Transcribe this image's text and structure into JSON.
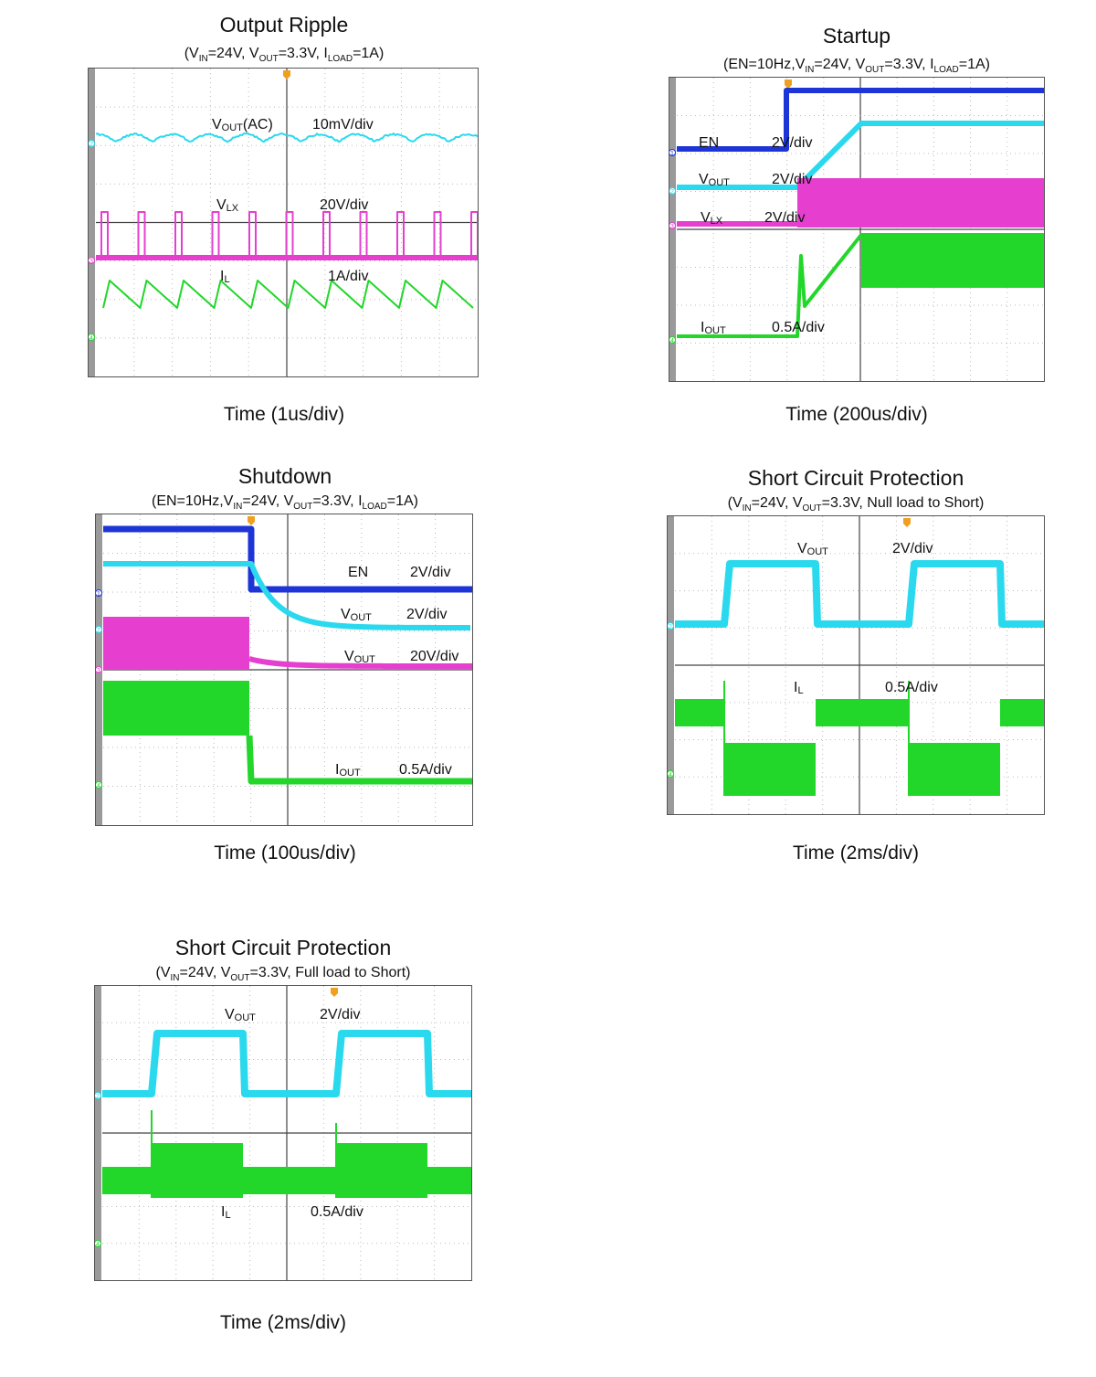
{
  "colors": {
    "cyan": "#2ad9ee",
    "magenta": "#e63fd0",
    "green": "#22d62a",
    "blue": "#1d35d6",
    "trigger": "#f0a020"
  },
  "panels": [
    {
      "title": "Output Ripple",
      "subtitle_parts": [
        "(V",
        "IN",
        "=24V, V",
        "OUT",
        "=3.3V, I",
        "LOAD",
        "=1A)"
      ],
      "xlabel": "Time (1us/div)"
    },
    {
      "title": "Startup",
      "subtitle_parts": [
        "(EN=10Hz,V",
        "IN",
        "=24V, V",
        "OUT",
        "=3.3V, I",
        "LOAD",
        "=1A)"
      ],
      "xlabel": "Time (200us/div)"
    },
    {
      "title": "Shutdown",
      "subtitle_parts": [
        "(EN=10Hz,V",
        "IN",
        "=24V, V",
        "OUT",
        "=3.3V, I",
        "LOAD",
        "=1A)"
      ],
      "xlabel": "Time (100us/div)"
    },
    {
      "title": "Short Circuit Protection",
      "subtitle_parts": [
        "(V",
        "IN",
        "=24V, V",
        "OUT",
        "=3.3V, Null load to Short)"
      ],
      "xlabel": "Time (2ms/div)"
    },
    {
      "title": "Short Circuit Protection",
      "subtitle_parts": [
        "(V",
        "IN",
        "=24V, V",
        "OUT",
        "=3.3V, Full load to Short)"
      ],
      "xlabel": "Time (2ms/div)"
    }
  ],
  "chart_data": [
    {
      "type": "line",
      "title": "Output Ripple",
      "xlabel": "Time (1us/div)",
      "series": [
        {
          "name": "VOUT(AC)",
          "label_main": "V",
          "label_sub": "OUT",
          "label_suffix": "(AC)",
          "scale": "10mV/div",
          "color": "cyan",
          "channel": "2"
        },
        {
          "name": "VLX",
          "label_main": "V",
          "label_sub": "LX",
          "label_suffix": "",
          "scale": "20V/div",
          "color": "magenta",
          "channel": "3"
        },
        {
          "name": "IL",
          "label_main": "I",
          "label_sub": "L",
          "label_suffix": "",
          "scale": "1A/div",
          "color": "green",
          "channel": "4"
        }
      ]
    },
    {
      "type": "line",
      "title": "Startup",
      "xlabel": "Time (200us/div)",
      "series": [
        {
          "name": "EN",
          "label_main": "EN",
          "label_sub": "",
          "label_suffix": "",
          "scale": "2V/div",
          "color": "blue",
          "channel": "1"
        },
        {
          "name": "VOUT",
          "label_main": "V",
          "label_sub": "OUT",
          "label_suffix": "",
          "scale": "2V/div",
          "color": "cyan",
          "channel": "2"
        },
        {
          "name": "VLX",
          "label_main": "V",
          "label_sub": "LX",
          "label_suffix": "",
          "scale": "2V/div",
          "color": "magenta",
          "channel": "3"
        },
        {
          "name": "IOUT",
          "label_main": "I",
          "label_sub": "OUT",
          "label_suffix": "",
          "scale": "0.5A/div",
          "color": "green",
          "channel": "4"
        }
      ]
    },
    {
      "type": "line",
      "title": "Shutdown",
      "xlabel": "Time (100us/div)",
      "series": [
        {
          "name": "EN",
          "label_main": "EN",
          "label_sub": "",
          "label_suffix": "",
          "scale": "2V/div",
          "color": "blue",
          "channel": "1"
        },
        {
          "name": "VOUT",
          "label_main": "V",
          "label_sub": "OUT",
          "label_suffix": "",
          "scale": "2V/div",
          "color": "cyan",
          "channel": "2"
        },
        {
          "name": "VOUT",
          "label_main": "V",
          "label_sub": "OUT",
          "label_suffix": "",
          "scale": "20V/div",
          "color": "magenta",
          "channel": "3"
        },
        {
          "name": "IOUT",
          "label_main": "I",
          "label_sub": "OUT",
          "label_suffix": "",
          "scale": "0.5A/div",
          "color": "green",
          "channel": "4"
        }
      ]
    },
    {
      "type": "line",
      "title": "Short Circuit Protection",
      "xlabel": "Time (2ms/div)",
      "series": [
        {
          "name": "VOUT",
          "label_main": "V",
          "label_sub": "OUT",
          "label_suffix": "",
          "scale": "2V/div",
          "color": "cyan",
          "channel": "2"
        },
        {
          "name": "IL",
          "label_main": "I",
          "label_sub": "L",
          "label_suffix": "",
          "scale": "0.5A/div",
          "color": "green",
          "channel": "4"
        }
      ]
    },
    {
      "type": "line",
      "title": "Short Circuit Protection",
      "xlabel": "Time (2ms/div)",
      "series": [
        {
          "name": "VOUT",
          "label_main": "V",
          "label_sub": "OUT",
          "label_suffix": "",
          "scale": "2V/div",
          "color": "cyan",
          "channel": "2"
        },
        {
          "name": "IL",
          "label_main": "I",
          "label_sub": "L",
          "label_suffix": "",
          "scale": "0.5A/div",
          "color": "green",
          "channel": "4"
        }
      ]
    }
  ]
}
